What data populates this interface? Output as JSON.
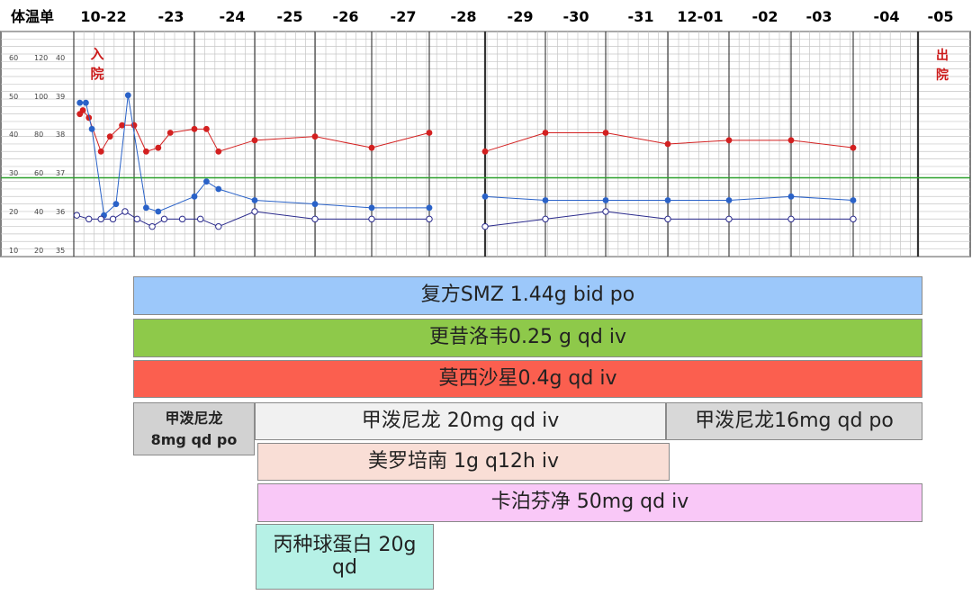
{
  "chart_data": {
    "type": "line",
    "title": "体温单",
    "date_labels": [
      "10-22",
      "-23",
      "-24",
      "-25",
      "-26",
      "-27",
      "-28",
      "-29",
      "-30",
      "-31",
      "12-01",
      "-02",
      "-03",
      "-04",
      "-05"
    ],
    "y_axis_ticks": [
      [
        "60",
        "120",
        "40"
      ],
      [
        "50",
        "100",
        "39"
      ],
      [
        "40",
        "80",
        "38"
      ],
      [
        "30",
        "60",
        "37"
      ],
      [
        "20",
        "40",
        "36"
      ],
      [
        "10",
        "20",
        "35"
      ]
    ],
    "temperature_ylim": [
      35,
      41
    ],
    "reference_line_temperature": 37.1,
    "annotations": {
      "admission": "入\n院",
      "discharge": "出\n院"
    },
    "series": [
      {
        "color": "#d32020",
        "marker": "filled",
        "points": [
          [
            0.1,
            38.8
          ],
          [
            0.15,
            38.9
          ],
          [
            0.25,
            38.7
          ],
          [
            0.45,
            37.8
          ],
          [
            0.6,
            38.2
          ],
          [
            0.8,
            38.5
          ],
          [
            1.0,
            38.5
          ],
          [
            1.2,
            37.8
          ],
          [
            1.4,
            37.9
          ],
          [
            1.6,
            38.3
          ],
          [
            2.0,
            38.4
          ],
          [
            2.2,
            38.4
          ],
          [
            2.4,
            37.8
          ],
          [
            3.0,
            38.1
          ],
          [
            4.0,
            38.2
          ],
          [
            5.0,
            37.9
          ],
          [
            6.0,
            38.3
          ],
          [
            7.0,
            37.8
          ],
          [
            8.0,
            38.3
          ],
          [
            9.0,
            38.3
          ],
          [
            10.0,
            38.0
          ],
          [
            11.0,
            38.1
          ],
          [
            12.0,
            38.1
          ],
          [
            13.0,
            37.9
          ]
        ]
      },
      {
        "color": "#2a62c8",
        "marker": "filled",
        "points": [
          [
            0.1,
            39.1
          ],
          [
            0.2,
            39.1
          ],
          [
            0.3,
            38.4
          ],
          [
            0.5,
            36.1
          ],
          [
            0.7,
            36.4
          ],
          [
            0.9,
            39.3
          ],
          [
            1.2,
            36.3
          ],
          [
            1.4,
            36.2
          ],
          [
            2.0,
            36.6
          ],
          [
            2.2,
            37.0
          ],
          [
            2.4,
            36.8
          ],
          [
            3.0,
            36.5
          ],
          [
            4.0,
            36.4
          ],
          [
            5.0,
            36.3
          ],
          [
            6.0,
            36.3
          ],
          [
            7.0,
            36.6
          ],
          [
            8.0,
            36.5
          ],
          [
            9.0,
            36.5
          ],
          [
            10.0,
            36.5
          ],
          [
            11.0,
            36.5
          ],
          [
            12.0,
            36.6
          ],
          [
            13.0,
            36.5
          ]
        ]
      },
      {
        "color": "#2a2a8c",
        "marker": "open",
        "points": [
          [
            0.05,
            36.1
          ],
          [
            0.25,
            36.0
          ],
          [
            0.45,
            36.0
          ],
          [
            0.65,
            36.0
          ],
          [
            0.85,
            36.2
          ],
          [
            1.05,
            36.0
          ],
          [
            1.3,
            35.8
          ],
          [
            1.5,
            36.0
          ],
          [
            1.8,
            36.0
          ],
          [
            2.1,
            36.0
          ],
          [
            2.4,
            35.8
          ],
          [
            3.0,
            36.2
          ],
          [
            4.0,
            36.0
          ],
          [
            5.0,
            36.0
          ],
          [
            6.0,
            36.0
          ],
          [
            7.0,
            35.8
          ],
          [
            8.0,
            36.0
          ],
          [
            9.0,
            36.2
          ],
          [
            10.0,
            36.0
          ],
          [
            11.0,
            36.0
          ],
          [
            12.0,
            36.0
          ],
          [
            13.0,
            36.0
          ]
        ]
      }
    ]
  },
  "regimen": [
    {
      "name": "smz",
      "label": "复方SMZ 1.44g bid po",
      "color": "#9cc8fa"
    },
    {
      "name": "ganciclovir",
      "label": "更昔洛韦0.25 g qd iv",
      "color": "#8ec94a"
    },
    {
      "name": "moxifloxacin",
      "label": "莫西沙星0.4g qd iv",
      "color": "#fb5f4f"
    },
    {
      "name": "mp-initial",
      "label": "甲泼尼龙\n8mg qd po",
      "color": "#d2d2d2"
    },
    {
      "name": "mp-iv",
      "label": "甲泼尼龙 20mg qd iv",
      "color": "#f1f1f1"
    },
    {
      "name": "mp-po",
      "label": "甲泼尼龙16mg qd po",
      "color": "#d8d8d8"
    },
    {
      "name": "meropenem",
      "label": "美罗培南 1g q12h iv",
      "color": "#f9ded6"
    },
    {
      "name": "caspofungin",
      "label": "卡泊芬净 50mg qd iv",
      "color": "#f9c8f7"
    },
    {
      "name": "ivig",
      "label": "丙种球蛋白 20g\nqd",
      "color": "#b6f1e6"
    }
  ]
}
